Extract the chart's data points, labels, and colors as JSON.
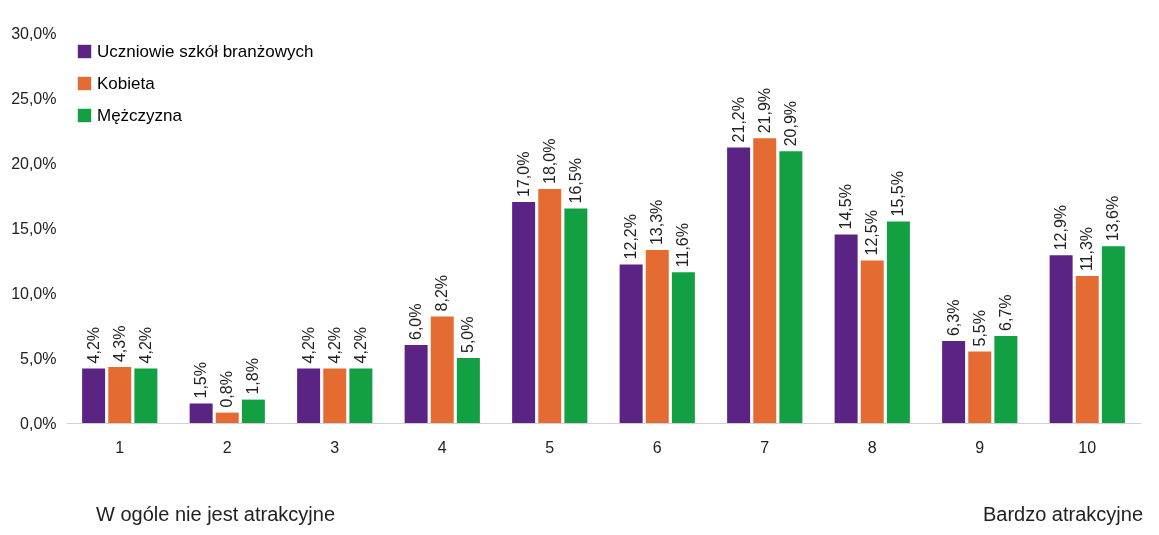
{
  "chart_data": {
    "type": "bar",
    "categories": [
      "1",
      "2",
      "3",
      "4",
      "5",
      "6",
      "7",
      "8",
      "9",
      "10"
    ],
    "series": [
      {
        "name": "Uczniowie szkół branżowych",
        "color": "#5b2383",
        "values": [
          4.2,
          1.5,
          4.2,
          6.0,
          17.0,
          12.2,
          21.2,
          14.5,
          6.3,
          12.9
        ],
        "value_labels": [
          "4,2%",
          "1,5%",
          "4,2%",
          "6,0%",
          "17,0%",
          "12,2%",
          "21,2%",
          "14,5%",
          "6,3%",
          "12,9%"
        ]
      },
      {
        "name": "Kobieta",
        "color": "#e46c32",
        "values": [
          4.3,
          0.8,
          4.2,
          8.2,
          18.0,
          13.3,
          21.9,
          12.5,
          5.5,
          11.3
        ],
        "value_labels": [
          "4,3%",
          "0,8%",
          "4,2%",
          "8,2%",
          "18,0%",
          "13,3%",
          "21,9%",
          "12,5%",
          "5,5%",
          "11,3%"
        ]
      },
      {
        "name": "Mężczyzna",
        "color": "#12a043",
        "values": [
          4.2,
          1.8,
          4.2,
          5.0,
          16.5,
          11.6,
          20.9,
          15.5,
          6.7,
          13.6
        ],
        "value_labels": [
          "4,2%",
          "1,8%",
          "4,2%",
          "5,0%",
          "16,5%",
          "11,6%",
          "20,9%",
          "15,5%",
          "6,7%",
          "13,6%"
        ]
      }
    ],
    "ylim": [
      0,
      30
    ],
    "yticks": [
      {
        "value": 0,
        "label": "0,0%"
      },
      {
        "value": 5,
        "label": "5,0%"
      },
      {
        "value": 10,
        "label": "10,0%"
      },
      {
        "value": 15,
        "label": "15,0%"
      },
      {
        "value": 20,
        "label": "20,0%"
      },
      {
        "value": 25,
        "label": "25,0%"
      },
      {
        "value": 30,
        "label": "30,0%"
      }
    ],
    "legend": "top left",
    "grid": false,
    "annotations": [
      "W ogóle nie  jest atrakcyjne",
      "Bardzo  atrakcyjne"
    ]
  }
}
